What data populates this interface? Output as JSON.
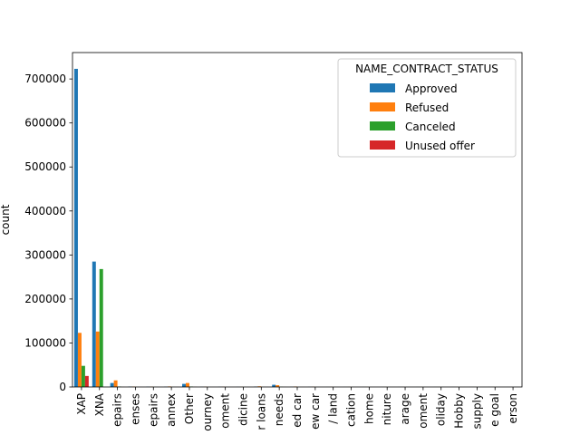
{
  "chart_data": {
    "type": "bar",
    "xlabel": "",
    "ylabel": "count",
    "ylim": [
      0,
      760000
    ],
    "yticks": [
      0,
      100000,
      200000,
      300000,
      400000,
      500000,
      600000,
      700000
    ],
    "ytick_labels": [
      "0",
      "100000",
      "200000",
      "300000",
      "400000",
      "500000",
      "600000",
      "700000"
    ],
    "categories": [
      "XAP",
      "XNA",
      "epairs",
      "enses",
      "epairs",
      "annex",
      "Other",
      "ourney",
      "oment",
      "dicine",
      "r loans",
      "needs",
      "ed car",
      "ew car",
      "/ land",
      "cation",
      "home",
      "niture",
      "arage",
      "oment",
      "oliday",
      "Hobby",
      "supply",
      "e goal",
      "erson"
    ],
    "legend": {
      "title": "NAME_CONTRACT_STATUS",
      "placement": "upper right"
    },
    "series": [
      {
        "name": "Approved",
        "color": "#1f77b4",
        "values": [
          723000,
          285000,
          9000,
          800,
          500,
          500,
          7000,
          300,
          300,
          200,
          800,
          5000,
          300,
          200,
          100,
          100,
          100,
          100,
          100,
          100,
          100,
          100,
          100,
          100,
          50
        ]
      },
      {
        "name": "Refused",
        "color": "#ff7f0e",
        "values": [
          123000,
          126000,
          15000,
          800,
          600,
          1200,
          9000,
          500,
          400,
          300,
          1500,
          4000,
          1000,
          400,
          200,
          200,
          100,
          100,
          100,
          100,
          100,
          100,
          100,
          100,
          50
        ]
      },
      {
        "name": "Canceled",
        "color": "#2ca02c",
        "values": [
          48000,
          268000,
          1000,
          100,
          100,
          100,
          1000,
          50,
          50,
          50,
          100,
          400,
          50,
          50,
          50,
          50,
          20,
          20,
          20,
          20,
          20,
          20,
          20,
          20,
          10
        ]
      },
      {
        "name": "Unused offer",
        "color": "#d62728",
        "values": [
          25000,
          0,
          100,
          50,
          20,
          20,
          200,
          10,
          10,
          10,
          50,
          100,
          20,
          10,
          10,
          10,
          5,
          5,
          5,
          5,
          5,
          5,
          5,
          5,
          5
        ]
      }
    ]
  }
}
